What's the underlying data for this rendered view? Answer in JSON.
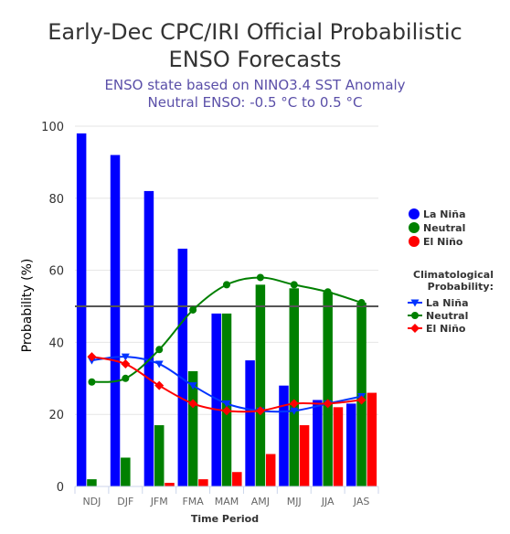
{
  "title_line1": "Early-Dec CPC/IRI Official Probabilistic",
  "title_line2": "ENSO Forecasts",
  "subtitle_line1": "ENSO state based on NINO3.4 SST Anomaly",
  "subtitle_line2": "Neutral ENSO: -0.5 °C to 0.5 °C",
  "chart_data": {
    "type": "bar",
    "categories": [
      "NDJ",
      "DJF",
      "JFM",
      "FMA",
      "MAM",
      "AMJ",
      "MJJ",
      "JJA",
      "JAS"
    ],
    "series": [
      {
        "name": "La Niña",
        "color": "#0000ff",
        "values": [
          98,
          92,
          82,
          66,
          48,
          35,
          28,
          24,
          23
        ]
      },
      {
        "name": "Neutral",
        "color": "#008000",
        "values": [
          2,
          8,
          17,
          32,
          48,
          56,
          55,
          54,
          51
        ]
      },
      {
        "name": "El Niño",
        "color": "#ff0000",
        "values": [
          0,
          0,
          1,
          2,
          4,
          9,
          17,
          22,
          26
        ]
      }
    ],
    "climatology": {
      "title": "Climatological Probability:",
      "series": [
        {
          "name": "La Niña",
          "color": "#0033ff",
          "marker": "triangle-down",
          "values": [
            35,
            36,
            34,
            28,
            23,
            21,
            21,
            23,
            25
          ]
        },
        {
          "name": "Neutral",
          "color": "#008000",
          "marker": "circle",
          "values": [
            29,
            30,
            38,
            49,
            56,
            58,
            56,
            54,
            51
          ]
        },
        {
          "name": "El Niño",
          "color": "#ff0000",
          "marker": "diamond",
          "values": [
            36,
            34,
            28,
            23,
            21,
            21,
            23,
            23,
            24
          ]
        }
      ]
    },
    "reference_line": 50,
    "xlabel": "Time Period",
    "ylabel": "Probability (%)",
    "ylim": [
      0,
      100
    ],
    "yticks": [
      0,
      20,
      40,
      60,
      80,
      100
    ],
    "grid": true,
    "legend_position": "right"
  }
}
